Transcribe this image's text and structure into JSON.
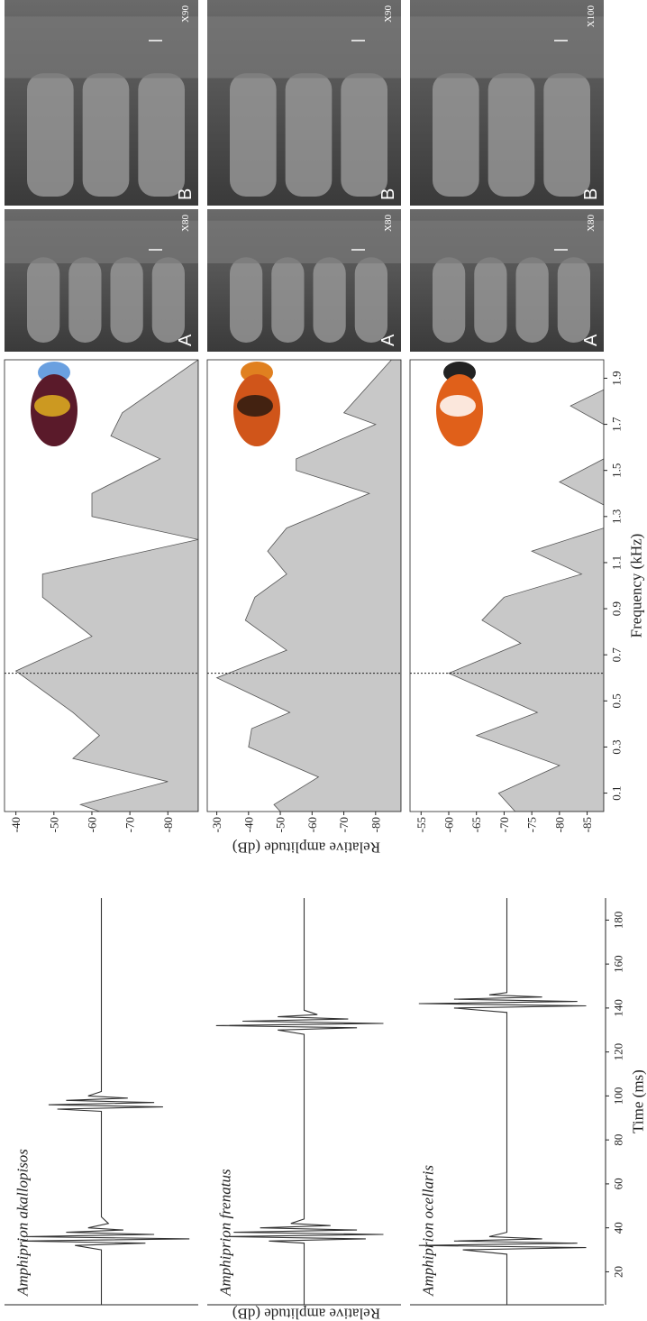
{
  "chart_data": [
    {
      "type": "line",
      "title": "Amphiprion akallopisos",
      "x": [
        5,
        30,
        32,
        33,
        34,
        35,
        36,
        37,
        38,
        39,
        40,
        42,
        45,
        93,
        94,
        95,
        96,
        97,
        98,
        99,
        100,
        102,
        190
      ],
      "values": [
        0,
        0,
        0.3,
        -0.5,
        0.9,
        -1,
        0.85,
        -0.6,
        0.4,
        -0.25,
        0.15,
        -0.08,
        0,
        0,
        0.5,
        -0.7,
        0.6,
        -0.6,
        0.4,
        -0.3,
        0.15,
        0,
        0
      ],
      "color": "#333333",
      "xlim": [
        5,
        190
      ],
      "ylim": [
        -1.1,
        1.1
      ]
    },
    {
      "type": "line",
      "title": "Amphiprion frenatus",
      "x": [
        5,
        33,
        34,
        35,
        36,
        37,
        38,
        39,
        40,
        41,
        42,
        44,
        128,
        130,
        131,
        132,
        133,
        134,
        135,
        136,
        137,
        139,
        190
      ],
      "values": [
        0,
        0,
        0.4,
        -0.7,
        0.9,
        -0.9,
        0.8,
        -0.6,
        0.5,
        -0.3,
        0.15,
        0,
        0,
        0.3,
        -0.6,
        1,
        -0.9,
        0.7,
        -0.5,
        0.3,
        -0.15,
        0,
        0
      ],
      "color": "#333333",
      "xlim": [
        5,
        190
      ],
      "ylim": [
        -1.1,
        1.1
      ]
    },
    {
      "type": "line",
      "title": "Amphiprion ocellaris",
      "x": [
        5,
        28,
        30,
        31,
        32,
        33,
        34,
        35,
        36,
        38,
        138,
        140,
        141,
        142,
        143,
        144,
        145,
        146,
        147,
        149,
        190
      ],
      "values": [
        0,
        0,
        0.5,
        -0.9,
        1,
        -0.8,
        0.6,
        -0.4,
        0.2,
        0,
        0,
        0.6,
        -0.9,
        1,
        -0.8,
        0.6,
        -0.4,
        0.2,
        0,
        0,
        0
      ],
      "color": "#333333",
      "xlim": [
        5,
        190
      ],
      "ylim": [
        -1.1,
        1.1
      ],
      "xticks": [
        20,
        40,
        60,
        80,
        100,
        120,
        140,
        160,
        180
      ],
      "x_label": "Time (ms)",
      "y_label": "Relative amplitude (dB)"
    },
    {
      "type": "area",
      "x": [
        0.02,
        0.05,
        0.15,
        0.25,
        0.35,
        0.45,
        0.63,
        0.78,
        0.95,
        1.05,
        1.2,
        1.3,
        1.4,
        1.55,
        1.65,
        1.75,
        1.98
      ],
      "values": [
        -62,
        -57,
        -80,
        -55,
        -62,
        -55,
        -40,
        -60,
        -47,
        -47,
        -88,
        -60,
        -60,
        -78,
        -65,
        -68,
        -88
      ],
      "color": "#c8c8c8",
      "xlim": [
        0.02,
        1.98
      ],
      "ylim": [
        -88,
        -37
      ],
      "yticks": [
        -40,
        -50,
        -60,
        -70,
        -80
      ],
      "vline": 0.62
    },
    {
      "type": "area",
      "x": [
        0.02,
        0.05,
        0.17,
        0.3,
        0.38,
        0.45,
        0.6,
        0.72,
        0.85,
        0.95,
        1.05,
        1.15,
        1.25,
        1.4,
        1.5,
        1.55,
        1.7,
        1.75,
        1.98
      ],
      "values": [
        -50,
        -48,
        -62,
        -40,
        -41,
        -53,
        -30,
        -52,
        -39,
        -42,
        -52,
        -46,
        -52,
        -78,
        -55,
        -55,
        -80,
        -70,
        -85
      ],
      "color": "#c8c8c8",
      "xlim": [
        0.02,
        1.98
      ],
      "ylim": [
        -88,
        -27
      ],
      "yticks": [
        -30,
        -40,
        -50,
        -60,
        -70,
        -80
      ],
      "vline": 0.62
    },
    {
      "type": "area",
      "x": [
        0.02,
        0.1,
        0.22,
        0.35,
        0.45,
        0.62,
        0.75,
        0.85,
        0.95,
        1.05,
        1.15,
        1.25,
        1.35,
        1.45,
        1.55,
        1.7,
        1.78,
        1.85
      ],
      "values": [
        -72,
        -69,
        -80,
        -65,
        -76,
        -60,
        -73,
        -66,
        -70,
        -84,
        -75,
        -88,
        -88,
        -80,
        -88,
        -88,
        -82,
        -88
      ],
      "color": "#c8c8c8",
      "xlim": [
        0.02,
        1.98
      ],
      "ylim": [
        -88,
        -53
      ],
      "yticks": [
        -55,
        -60,
        -65,
        -70,
        -75,
        -80,
        -85
      ],
      "vline": 0.62,
      "xticks": [
        0.1,
        0.3,
        0.5,
        0.7,
        0.9,
        1.1,
        1.3,
        1.5,
        1.7,
        1.9
      ],
      "x_label": "Frequency (kHz)",
      "y_label": "Relative amplitude (dB)"
    }
  ],
  "micrographs": [
    {
      "label": "A",
      "magnification": "X80"
    },
    {
      "label": "B",
      "magnification": "X90"
    },
    {
      "label": "A",
      "magnification": "X80"
    },
    {
      "label": "B",
      "magnification": "X90"
    },
    {
      "label": "A",
      "magnification": "X80"
    },
    {
      "label": "B",
      "magnification": "X100"
    }
  ]
}
